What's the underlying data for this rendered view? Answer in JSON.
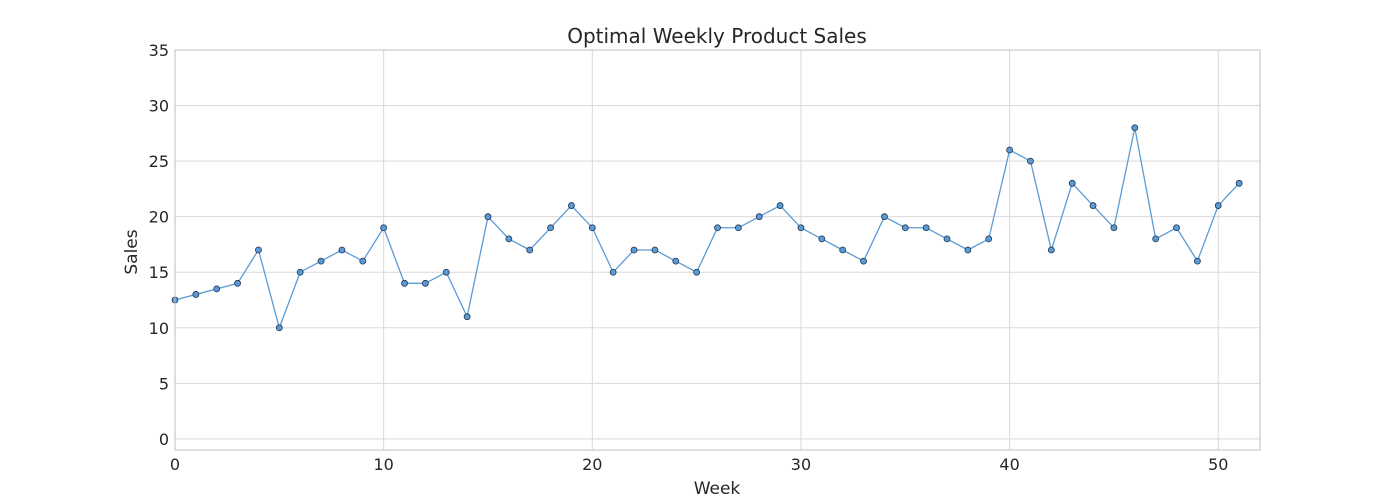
{
  "chart_data": {
    "type": "line",
    "title": "Optimal Weekly Product Sales",
    "xlabel": "Week",
    "ylabel": "Sales",
    "xlim": [
      0,
      52
    ],
    "ylim": [
      -1,
      35
    ],
    "xticks": [
      0,
      10,
      20,
      30,
      40,
      50
    ],
    "yticks": [
      0,
      5,
      10,
      15,
      20,
      25,
      30,
      35
    ],
    "grid": true,
    "legend": "none",
    "colors": {
      "line": "#5b9bd5",
      "marker_fill": "#5b9bd5",
      "marker_edge": "#1f3550",
      "grid": "#d9d9d9",
      "axes": "#bfbfbf",
      "text": "#262626"
    },
    "series": [
      {
        "x": [
          0,
          1,
          2,
          3,
          4,
          5,
          6,
          7,
          8,
          9,
          10,
          11,
          12,
          13,
          14,
          15,
          16,
          17,
          18,
          19,
          20,
          21,
          22,
          23,
          24,
          25,
          26,
          27,
          28,
          29,
          30,
          31,
          32,
          33,
          34,
          35,
          36,
          37,
          38,
          39,
          40,
          41,
          42,
          43,
          44,
          45,
          46,
          47,
          48,
          49,
          50,
          51
        ],
        "values": [
          12.5,
          13,
          13.5,
          14,
          17,
          10,
          15,
          16,
          17,
          16,
          19,
          14,
          14,
          15,
          11,
          20,
          18,
          17,
          19,
          21,
          19,
          15,
          17,
          17,
          16,
          15,
          19,
          19,
          20,
          21,
          19,
          18,
          17,
          16,
          20,
          19,
          19,
          18,
          17,
          18,
          26,
          25,
          17,
          23,
          21,
          19,
          28,
          18,
          19,
          16,
          21,
          23
        ]
      }
    ]
  }
}
